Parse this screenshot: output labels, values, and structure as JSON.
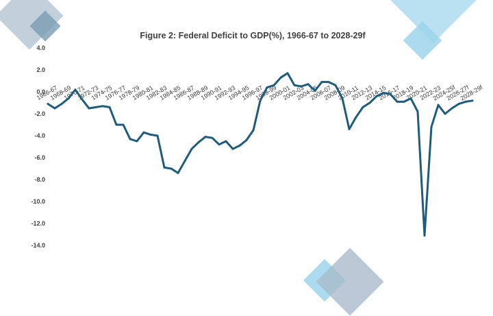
{
  "colors": {
    "line": "#1f5b7a",
    "axis_text": "#404040",
    "deco_grey": "#a9bccb",
    "deco_blue": "#9dd4ec",
    "deco_mid": "#7a9cb3"
  },
  "chart_data": {
    "type": "line",
    "title": "Figure 2: Federal Deficit to GDP(%), 1966-67 to 2028-29f",
    "xlabel": "",
    "ylabel": "",
    "ylim": [
      -14.0,
      4.0
    ],
    "yticks": [
      "4.0",
      "2.0",
      "0.0",
      "-2.0",
      "-4.0",
      "-6.0",
      "-8.0",
      "-10.0",
      "-12.0",
      "-14.0"
    ],
    "grid": false,
    "x": [
      "1966-67",
      "1967-68",
      "1968-69",
      "1969-70",
      "1970-71",
      "1971-72",
      "1972-73",
      "1973-74",
      "1974-75",
      "1975-76",
      "1976-77",
      "1977-78",
      "1978-79",
      "1979-80",
      "1980-81",
      "1981-82",
      "1982-83",
      "1983-84",
      "1984-85",
      "1985-86",
      "1986-87",
      "1987-88",
      "1988-89",
      "1989-90",
      "1990-91",
      "1991-92",
      "1992-93",
      "1993-94",
      "1994-95",
      "1995-96",
      "1996-97",
      "1997-98",
      "1998-99",
      "1999-00",
      "2000-01",
      "2001-02",
      "2002-03",
      "2003-04",
      "2004-05",
      "2005-06",
      "2006-07",
      "2007-08",
      "2008-09",
      "2009-10",
      "2010-11",
      "2011-12",
      "2012-13",
      "2013-14",
      "2014-15",
      "2015-16",
      "2016-17",
      "2017-18",
      "2018-19",
      "2019-20",
      "2020-21",
      "2021-22",
      "2022-23",
      "2023-24",
      "2024-25f",
      "2025-26f",
      "2026-27f",
      "2027-28f",
      "2028-29f"
    ],
    "xtick_labels": [
      "1966-67",
      "1968-69",
      "1970-71",
      "1972-73",
      "1974-75",
      "1976-77",
      "1978-79",
      "1980-81",
      "1982-83",
      "1984-85",
      "1986-87",
      "1988-89",
      "1990-91",
      "1992-93",
      "1994-95",
      "1996-97",
      "1998-99",
      "2000-01",
      "2002-03",
      "2004-05",
      "2006-07",
      "2008-09",
      "2010-11",
      "2012-13",
      "2014-15",
      "2016-17",
      "2018-19",
      "2020-21",
      "2022-23",
      "2024-25f",
      "2026-27f",
      "2028-29f"
    ],
    "series": [
      {
        "values": [
          -1.1,
          -1.5,
          -1.1,
          -0.6,
          0.2,
          -0.7,
          -1.5,
          -1.4,
          -1.3,
          -1.4,
          -3.0,
          -3.0,
          -4.3,
          -4.5,
          -3.7,
          -3.9,
          -4.0,
          -6.9,
          -7.0,
          -7.4,
          -6.3,
          -5.2,
          -4.6,
          -4.1,
          -4.2,
          -4.8,
          -4.5,
          -5.2,
          -4.9,
          -4.4,
          -3.5,
          -0.8,
          0.4,
          0.6,
          1.3,
          1.7,
          0.6,
          0.5,
          0.7,
          0.1,
          0.9,
          0.9,
          0.6,
          -0.6,
          -3.4,
          -2.3,
          -1.4,
          -1.0,
          -0.4,
          -0.1,
          -0.2,
          -0.9,
          -0.9,
          -0.6,
          -1.8,
          -13.1,
          -3.2,
          -1.2,
          -2.0,
          -1.5,
          -1.1,
          -0.9,
          -0.8
        ]
      }
    ]
  }
}
